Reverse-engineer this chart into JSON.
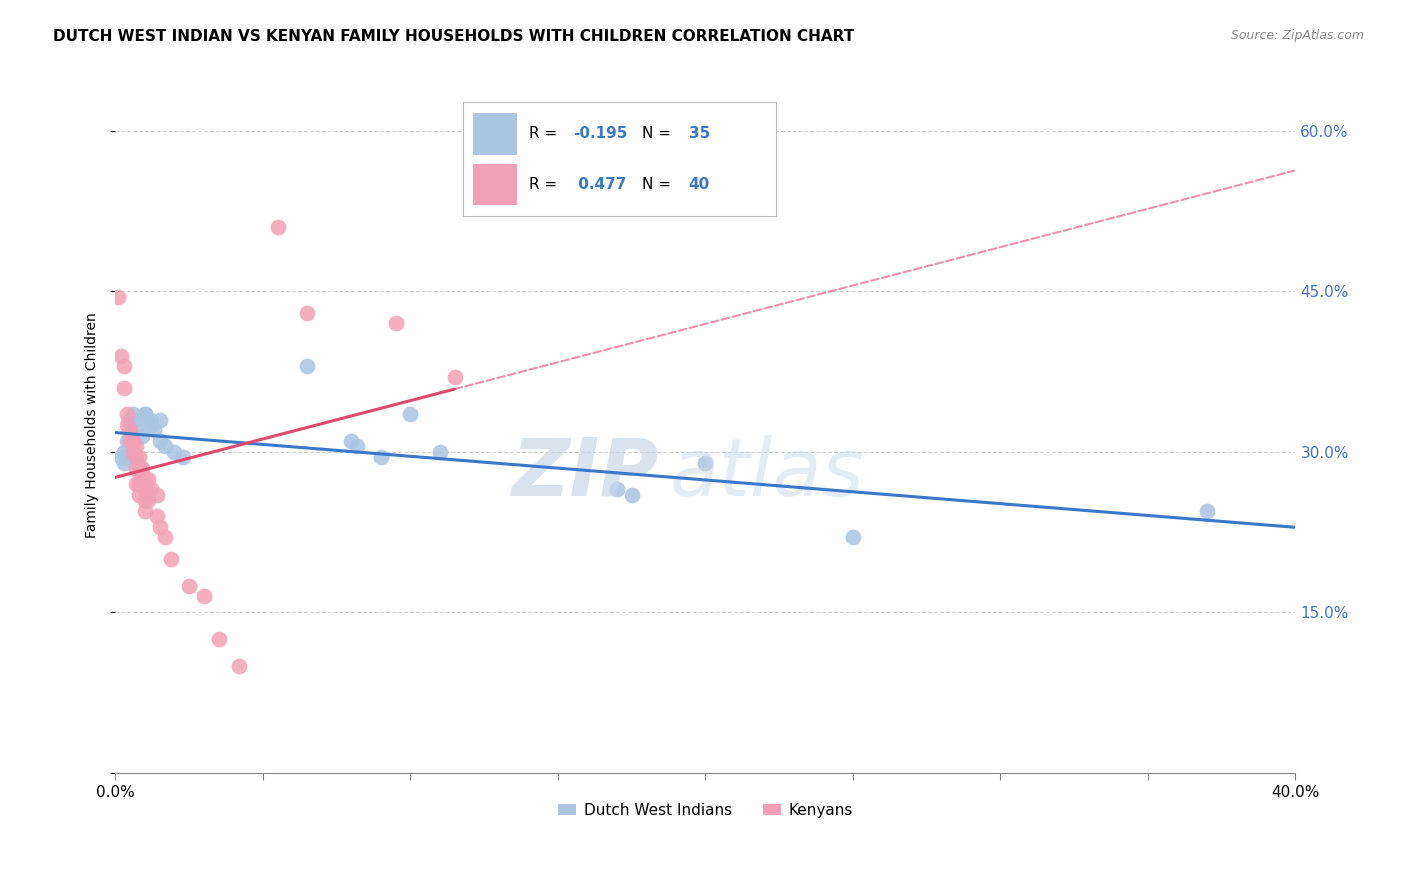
{
  "title": "DUTCH WEST INDIAN VS KENYAN FAMILY HOUSEHOLDS WITH CHILDREN CORRELATION CHART",
  "source": "Source: ZipAtlas.com",
  "ylabel": "Family Households with Children",
  "xlim": [
    0.0,
    0.4
  ],
  "ylim": [
    0.0,
    0.65
  ],
  "yticks": [
    0.0,
    0.15,
    0.3,
    0.45,
    0.6
  ],
  "xtick_positions": [
    0.0,
    0.05,
    0.1,
    0.15,
    0.2,
    0.25,
    0.3,
    0.35,
    0.4
  ],
  "blue_label": "Dutch West Indians",
  "pink_label": "Kenyans",
  "r_blue": -0.195,
  "n_blue": 35,
  "r_pink": 0.477,
  "n_pink": 40,
  "blue_color": "#aac4e2",
  "pink_color": "#f2a0b5",
  "blue_line_color": "#3a78c8",
  "pink_line_color": "#e04870",
  "grid_color": "#d0d0d0",
  "watermark_zip": "ZIP",
  "watermark_atlas": "atlas",
  "blue_scatter": [
    [
      0.002,
      0.295
    ],
    [
      0.003,
      0.3
    ],
    [
      0.003,
      0.29
    ],
    [
      0.004,
      0.31
    ],
    [
      0.004,
      0.295
    ],
    [
      0.005,
      0.33
    ],
    [
      0.005,
      0.315
    ],
    [
      0.006,
      0.335
    ],
    [
      0.006,
      0.3
    ],
    [
      0.007,
      0.33
    ],
    [
      0.007,
      0.29
    ],
    [
      0.008,
      0.325
    ],
    [
      0.008,
      0.285
    ],
    [
      0.009,
      0.315
    ],
    [
      0.01,
      0.335
    ],
    [
      0.01,
      0.335
    ],
    [
      0.012,
      0.33
    ],
    [
      0.012,
      0.325
    ],
    [
      0.013,
      0.32
    ],
    [
      0.015,
      0.33
    ],
    [
      0.015,
      0.31
    ],
    [
      0.017,
      0.305
    ],
    [
      0.02,
      0.3
    ],
    [
      0.023,
      0.295
    ],
    [
      0.065,
      0.38
    ],
    [
      0.08,
      0.31
    ],
    [
      0.082,
      0.305
    ],
    [
      0.09,
      0.295
    ],
    [
      0.1,
      0.335
    ],
    [
      0.11,
      0.3
    ],
    [
      0.17,
      0.265
    ],
    [
      0.175,
      0.26
    ],
    [
      0.2,
      0.29
    ],
    [
      0.25,
      0.22
    ],
    [
      0.37,
      0.245
    ]
  ],
  "pink_scatter": [
    [
      0.001,
      0.445
    ],
    [
      0.002,
      0.39
    ],
    [
      0.003,
      0.38
    ],
    [
      0.003,
      0.36
    ],
    [
      0.004,
      0.335
    ],
    [
      0.004,
      0.325
    ],
    [
      0.005,
      0.32
    ],
    [
      0.005,
      0.31
    ],
    [
      0.006,
      0.31
    ],
    [
      0.006,
      0.3
    ],
    [
      0.007,
      0.305
    ],
    [
      0.007,
      0.295
    ],
    [
      0.007,
      0.285
    ],
    [
      0.007,
      0.27
    ],
    [
      0.008,
      0.295
    ],
    [
      0.008,
      0.28
    ],
    [
      0.008,
      0.27
    ],
    [
      0.008,
      0.26
    ],
    [
      0.009,
      0.285
    ],
    [
      0.009,
      0.27
    ],
    [
      0.01,
      0.275
    ],
    [
      0.01,
      0.265
    ],
    [
      0.01,
      0.255
    ],
    [
      0.01,
      0.245
    ],
    [
      0.011,
      0.275
    ],
    [
      0.011,
      0.255
    ],
    [
      0.012,
      0.265
    ],
    [
      0.014,
      0.26
    ],
    [
      0.014,
      0.24
    ],
    [
      0.015,
      0.23
    ],
    [
      0.017,
      0.22
    ],
    [
      0.019,
      0.2
    ],
    [
      0.025,
      0.175
    ],
    [
      0.03,
      0.165
    ],
    [
      0.035,
      0.125
    ],
    [
      0.042,
      0.1
    ],
    [
      0.055,
      0.51
    ],
    [
      0.065,
      0.43
    ],
    [
      0.095,
      0.42
    ],
    [
      0.115,
      0.37
    ]
  ]
}
